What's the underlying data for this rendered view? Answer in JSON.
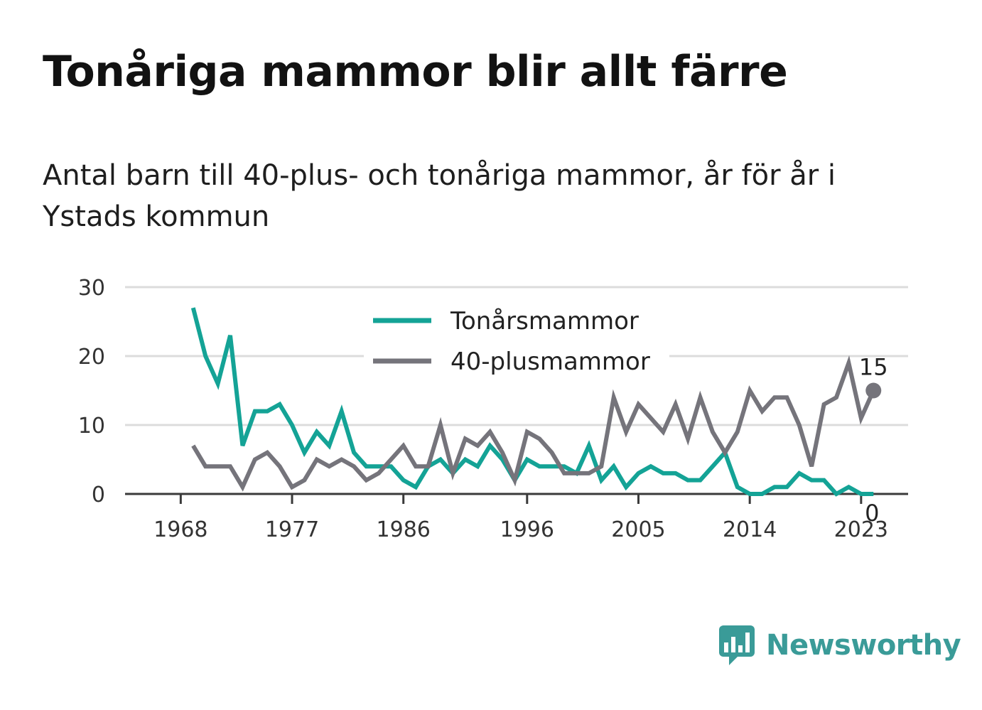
{
  "header": {
    "title": "Tonåriga mammor blir allt färre",
    "subtitle": "Antal barn till 40-plus- och tonåriga mammor, år för år i Ystads kommun"
  },
  "brand": {
    "name": "Newsworthy",
    "icon": "bar-chart-speech-bubble-icon",
    "color": "#3a9b98"
  },
  "chart_data": {
    "type": "line",
    "x": [
      1969,
      1970,
      1971,
      1972,
      1973,
      1974,
      1975,
      1976,
      1977,
      1978,
      1979,
      1980,
      1981,
      1982,
      1983,
      1984,
      1985,
      1986,
      1987,
      1988,
      1989,
      1990,
      1991,
      1992,
      1993,
      1994,
      1995,
      1996,
      1997,
      1998,
      1999,
      2000,
      2001,
      2002,
      2003,
      2004,
      2005,
      2006,
      2007,
      2008,
      2009,
      2010,
      2011,
      2012,
      2013,
      2014,
      2015,
      2016,
      2017,
      2018,
      2019,
      2020,
      2021,
      2022,
      2023,
      2024
    ],
    "series": [
      {
        "name": "Tonårsmammor",
        "color": "#14a396",
        "values": [
          27,
          20,
          16,
          23,
          7,
          12,
          12,
          13,
          10,
          6,
          9,
          7,
          12,
          6,
          4,
          4,
          4,
          2,
          1,
          4,
          5,
          3,
          5,
          4,
          7,
          5,
          2,
          5,
          4,
          4,
          4,
          3,
          7,
          2,
          4,
          1,
          3,
          4,
          3,
          3,
          2,
          2,
          4,
          6,
          1,
          0,
          0,
          1,
          1,
          3,
          2,
          2,
          0,
          1,
          0,
          0
        ],
        "end_label": "0"
      },
      {
        "name": "40-plusmammor",
        "color": "#75747b",
        "values": [
          7,
          4,
          4,
          4,
          1,
          5,
          6,
          4,
          1,
          2,
          5,
          4,
          5,
          4,
          2,
          3,
          5,
          7,
          4,
          4,
          10,
          3,
          8,
          7,
          9,
          6,
          2,
          9,
          8,
          6,
          3,
          3,
          3,
          4,
          14,
          9,
          13,
          11,
          9,
          13,
          8,
          14,
          9,
          6,
          9,
          15,
          12,
          14,
          14,
          10,
          4,
          13,
          14,
          19,
          11,
          15
        ],
        "end_label": "15"
      }
    ],
    "x_ticks": [
      "1968",
      "1977",
      "1986",
      "1996",
      "2005",
      "2014",
      "2023"
    ],
    "y_ticks": [
      "0",
      "10",
      "20",
      "30"
    ],
    "ylim": [
      0,
      30
    ],
    "grid": true,
    "legend": "top-center"
  }
}
